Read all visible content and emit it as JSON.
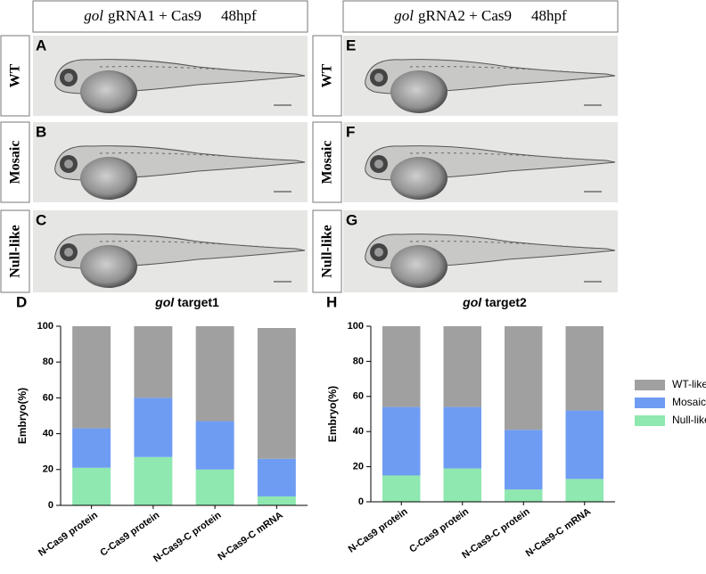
{
  "panels": [
    {
      "gene": "gol",
      "header": "gRNA1 + Cas9",
      "stage": "48hpf",
      "rows": [
        {
          "letter": "A",
          "label": "WT"
        },
        {
          "letter": "B",
          "label": "Mosaic"
        },
        {
          "letter": "C",
          "label": "Null-like"
        }
      ]
    },
    {
      "gene": "gol",
      "header": "gRNA2 + Cas9",
      "stage": "48hpf",
      "rows": [
        {
          "letter": "E",
          "label": "WT"
        },
        {
          "letter": "F",
          "label": "Mosaic"
        },
        {
          "letter": "G",
          "label": "Null-like"
        }
      ]
    }
  ],
  "chart_data": [
    {
      "type": "stacked_bar",
      "panel": "D",
      "gene": "gol",
      "title": "target1",
      "y_label": "Embryo(%)",
      "categories": [
        "N-Cas9 protein",
        "C-Cas9 protein",
        "N-Cas9-C protein",
        "N-Cas9-C mRNA"
      ],
      "series": [
        {
          "color": "#8ee8b0",
          "values": [
            21,
            27,
            20,
            5
          ]
        },
        {
          "color": "#6f9cf3",
          "values": [
            22,
            33,
            27,
            21
          ]
        },
        {
          "color": "#a0a0a0",
          "values": [
            57,
            40,
            53,
            73
          ]
        }
      ],
      "ylim": [
        0,
        100
      ],
      "yticks": [
        0,
        20,
        40,
        60,
        80,
        100
      ]
    },
    {
      "type": "stacked_bar",
      "panel": "H",
      "gene": "gol",
      "title": "target2",
      "y_label": "Embryo(%)",
      "categories": [
        "N-Cas9 protein",
        "C-Cas9 protein",
        "N-Cas9-C protein",
        "N-Cas9-C mRNA"
      ],
      "series": [
        {
          "name": "Null-like",
          "color": "#8ee8b0",
          "values": [
            15,
            19,
            7,
            13
          ]
        },
        {
          "name": "Mosaic",
          "color": "#6f9cf3",
          "values": [
            39,
            35,
            34,
            39
          ]
        },
        {
          "name": "WT-like",
          "color": "#a0a0a0",
          "values": [
            46,
            46,
            59,
            48
          ]
        }
      ],
      "ylim": [
        0,
        100
      ],
      "yticks": [
        0,
        20,
        40,
        60,
        80,
        100
      ],
      "legend": "right"
    }
  ]
}
